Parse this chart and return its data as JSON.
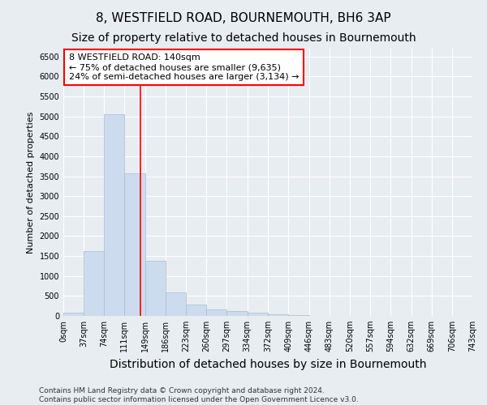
{
  "title": "8, WESTFIELD ROAD, BOURNEMOUTH, BH6 3AP",
  "subtitle": "Size of property relative to detached houses in Bournemouth",
  "xlabel": "Distribution of detached houses by size in Bournemouth",
  "ylabel": "Number of detached properties",
  "footer_line1": "Contains HM Land Registry data © Crown copyright and database right 2024.",
  "footer_line2": "Contains public sector information licensed under the Open Government Licence v3.0.",
  "bin_edges": [
    0,
    37,
    74,
    111,
    149,
    186,
    223,
    260,
    297,
    334,
    372,
    409,
    446,
    483,
    520,
    557,
    594,
    632,
    669,
    706,
    743
  ],
  "bar_heights": [
    75,
    1620,
    5060,
    3570,
    1390,
    590,
    290,
    155,
    130,
    90,
    50,
    30,
    5,
    5,
    3,
    2,
    2,
    1,
    1,
    1
  ],
  "bar_color": "#ccdcee",
  "bar_edge_color": "#aabcce",
  "red_line_x": 140,
  "annotation_text": "8 WESTFIELD ROAD: 140sqm\n← 75% of detached houses are smaller (9,635)\n24% of semi-detached houses are larger (3,134) →",
  "annotation_box_color": "white",
  "annotation_box_edge_color": "red",
  "ylim": [
    0,
    6700
  ],
  "yticks": [
    0,
    500,
    1000,
    1500,
    2000,
    2500,
    3000,
    3500,
    4000,
    4500,
    5000,
    5500,
    6000,
    6500
  ],
  "bg_color": "#e8edf2",
  "grid_color": "white",
  "title_fontsize": 11,
  "subtitle_fontsize": 10,
  "xlabel_fontsize": 10,
  "ylabel_fontsize": 8,
  "tick_fontsize": 7,
  "annotation_fontsize": 8,
  "footer_fontsize": 6.5
}
